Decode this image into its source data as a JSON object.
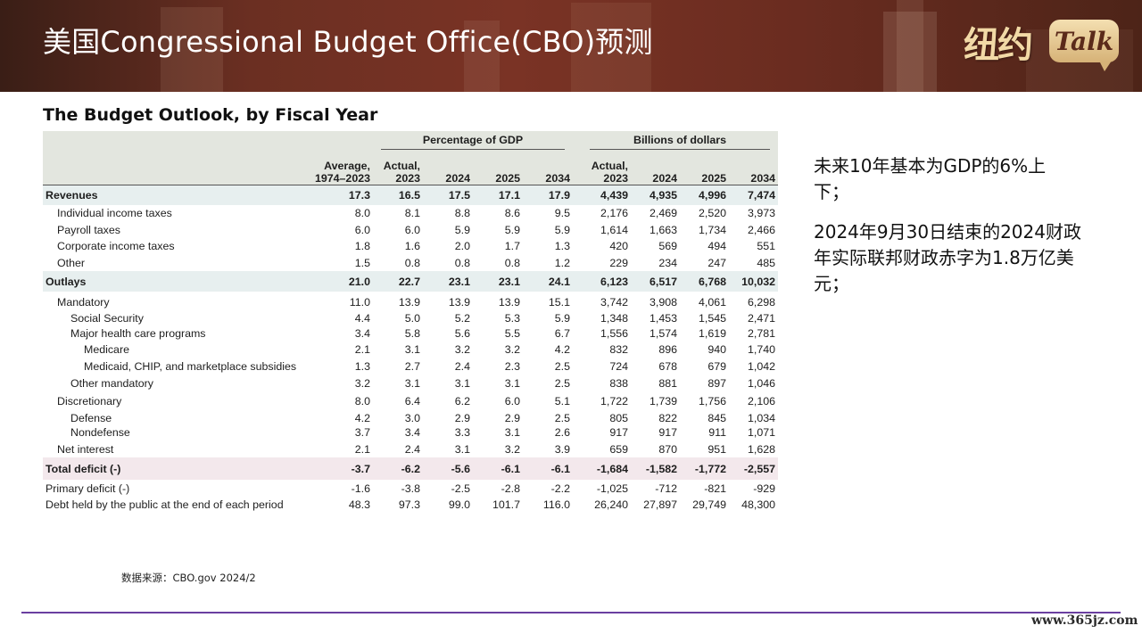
{
  "banner": {
    "title": "美国Congressional Budget Office(CBO)预测",
    "logo_cn": "纽约",
    "logo_en": "Talk"
  },
  "table": {
    "title": "The Budget Outlook, by Fiscal Year",
    "group_headers": [
      "Percentage of GDP",
      "Billions of dollars"
    ],
    "columns": {
      "avg_line1": "Average,",
      "avg_line2": "1974–2023",
      "pct_actual_line1": "Actual,",
      "pct_actual_line2": "2023",
      "pct_2024": "2024",
      "pct_2025": "2025",
      "pct_2034": "2034",
      "bil_actual_line1": "Actual,",
      "bil_actual_line2": "2023",
      "bil_2024": "2024",
      "bil_2025": "2025",
      "bil_2034": "2034"
    },
    "rows": [
      {
        "label": "Revenues",
        "values": [
          "17.3",
          "16.5",
          "17.5",
          "17.1",
          "17.9",
          "4,439",
          "4,935",
          "4,996",
          "7,474"
        ]
      },
      {
        "label": "Individual income taxes",
        "values": [
          "8.0",
          "8.1",
          "8.8",
          "8.6",
          "9.5",
          "2,176",
          "2,469",
          "2,520",
          "3,973"
        ]
      },
      {
        "label": "Payroll taxes",
        "values": [
          "6.0",
          "6.0",
          "5.9",
          "5.9",
          "5.9",
          "1,614",
          "1,663",
          "1,734",
          "2,466"
        ]
      },
      {
        "label": "Corporate income taxes",
        "values": [
          "1.8",
          "1.6",
          "2.0",
          "1.7",
          "1.3",
          "420",
          "569",
          "494",
          "551"
        ]
      },
      {
        "label": "Other",
        "values": [
          "1.5",
          "0.8",
          "0.8",
          "0.8",
          "1.2",
          "229",
          "234",
          "247",
          "485"
        ]
      },
      {
        "label": "Outlays",
        "values": [
          "21.0",
          "22.7",
          "23.1",
          "23.1",
          "24.1",
          "6,123",
          "6,517",
          "6,768",
          "10,032"
        ]
      },
      {
        "label": "Mandatory",
        "values": [
          "11.0",
          "13.9",
          "13.9",
          "13.9",
          "15.1",
          "3,742",
          "3,908",
          "4,061",
          "6,298"
        ]
      },
      {
        "label": "Social Security",
        "values": [
          "4.4",
          "5.0",
          "5.2",
          "5.3",
          "5.9",
          "1,348",
          "1,453",
          "1,545",
          "2,471"
        ]
      },
      {
        "label": "Major health care programs",
        "values": [
          "3.4",
          "5.8",
          "5.6",
          "5.5",
          "6.7",
          "1,556",
          "1,574",
          "1,619",
          "2,781"
        ]
      },
      {
        "label": "Medicare",
        "values": [
          "2.1",
          "3.1",
          "3.2",
          "3.2",
          "4.2",
          "832",
          "896",
          "940",
          "1,740"
        ]
      },
      {
        "label": "Medicaid, CHIP, and marketplace subsidies",
        "values": [
          "1.3",
          "2.7",
          "2.4",
          "2.3",
          "2.5",
          "724",
          "678",
          "679",
          "1,042"
        ]
      },
      {
        "label": "Other mandatory",
        "values": [
          "3.2",
          "3.1",
          "3.1",
          "3.1",
          "2.5",
          "838",
          "881",
          "897",
          "1,046"
        ]
      },
      {
        "label": "Discretionary",
        "values": [
          "8.0",
          "6.4",
          "6.2",
          "6.0",
          "5.1",
          "1,722",
          "1,739",
          "1,756",
          "2,106"
        ]
      },
      {
        "label": "Defense",
        "values": [
          "4.2",
          "3.0",
          "2.9",
          "2.9",
          "2.5",
          "805",
          "822",
          "845",
          "1,034"
        ]
      },
      {
        "label": "Nondefense",
        "values": [
          "3.7",
          "3.4",
          "3.3",
          "3.1",
          "2.6",
          "917",
          "917",
          "911",
          "1,071"
        ]
      },
      {
        "label": "Net interest",
        "values": [
          "2.1",
          "2.4",
          "3.1",
          "3.2",
          "3.9",
          "659",
          "870",
          "951",
          "1,628"
        ]
      },
      {
        "label": "Total deficit (-)",
        "values": [
          "-3.7",
          "-6.2",
          "-5.6",
          "-6.1",
          "-6.1",
          "-1,684",
          "-1,582",
          "-1,772",
          "-2,557"
        ]
      },
      {
        "label": "Primary deficit (-)",
        "values": [
          "-1.6",
          "-3.8",
          "-2.5",
          "-2.8",
          "-2.2",
          "-1,025",
          "-712",
          "-821",
          "-929"
        ]
      },
      {
        "label": "Debt held by the public at the end of each period",
        "values": [
          "48.3",
          "97.3",
          "99.0",
          "101.7",
          "116.0",
          "26,240",
          "27,897",
          "29,749",
          "48,300"
        ]
      }
    ]
  },
  "source": "数据来源：CBO.gov 2024/2",
  "notes": [
    "未来10年基本为GDP的6%上下；",
    "2024年9月30日结束的2024财政年实际联邦财政赤字为1.8万亿美元；"
  ],
  "footer": {
    "url": "www.365jz.com"
  },
  "colors": {
    "banner": "#6b2f22",
    "header_band": "#e3e6df",
    "bold_row": "#e7efef",
    "deficit_row": "#f3e8ec",
    "footer_line": "#6a3fa0"
  }
}
